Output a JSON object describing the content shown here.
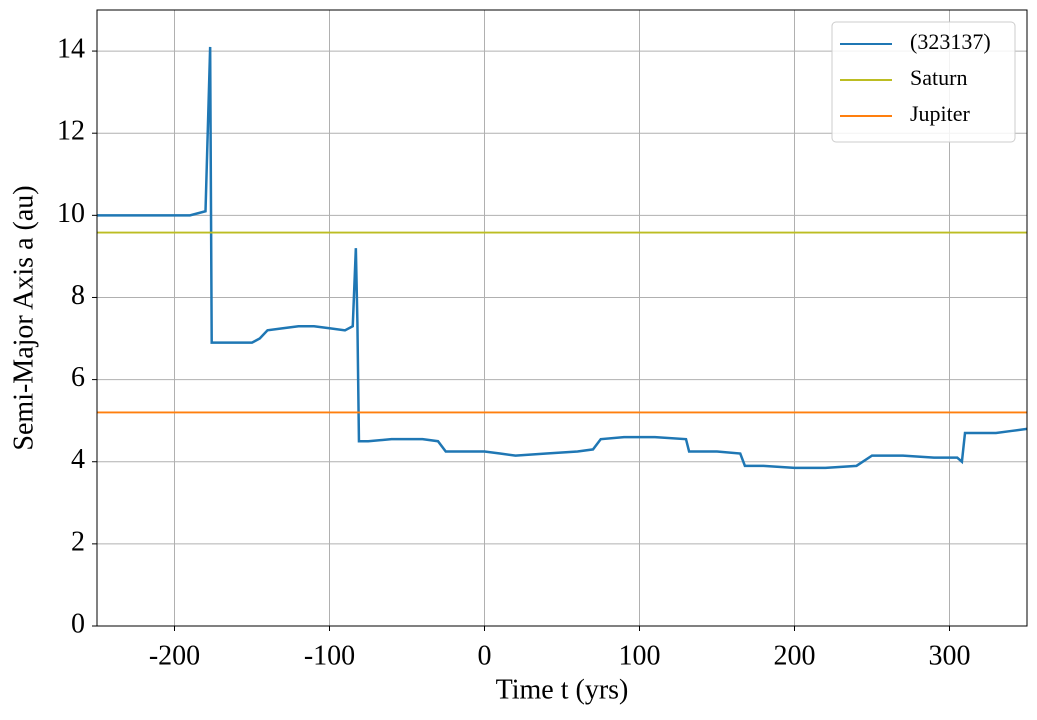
{
  "chart_data": {
    "type": "line",
    "xlabel": "Time t (yrs)",
    "ylabel": "Semi-Major Axis a (au)",
    "xlim": [
      -250,
      350
    ],
    "ylim": [
      0,
      15
    ],
    "xticks": [
      -200,
      -100,
      0,
      100,
      200,
      300
    ],
    "yticks": [
      0,
      2,
      4,
      6,
      8,
      10,
      12,
      14
    ],
    "grid": true,
    "legend": "upper right",
    "series": [
      {
        "name": "(323137)",
        "color": "#1f77b4",
        "x": [
          -250,
          -240,
          -230,
          -220,
          -210,
          -200,
          -190,
          -180,
          -177,
          -176,
          -170,
          -150,
          -145,
          -140,
          -130,
          -120,
          -110,
          -100,
          -90,
          -85,
          -83,
          -82,
          -81,
          -75,
          -60,
          -40,
          -30,
          -25,
          -10,
          0,
          10,
          20,
          40,
          60,
          70,
          75,
          90,
          110,
          130,
          132,
          150,
          165,
          168,
          180,
          200,
          220,
          240,
          250,
          270,
          290,
          305,
          308,
          310,
          320,
          330,
          340,
          350
        ],
        "values": [
          10.0,
          10.0,
          10.0,
          10.0,
          10.0,
          10.0,
          10.0,
          10.1,
          14.1,
          6.9,
          6.9,
          6.9,
          7.0,
          7.2,
          7.25,
          7.3,
          7.3,
          7.25,
          7.2,
          7.3,
          9.2,
          7.4,
          4.5,
          4.5,
          4.55,
          4.55,
          4.5,
          4.25,
          4.25,
          4.25,
          4.2,
          4.15,
          4.2,
          4.25,
          4.3,
          4.55,
          4.6,
          4.6,
          4.55,
          4.25,
          4.25,
          4.2,
          3.9,
          3.9,
          3.85,
          3.85,
          3.9,
          4.15,
          4.15,
          4.1,
          4.1,
          4.0,
          4.7,
          4.7,
          4.7,
          4.75,
          4.8
        ]
      },
      {
        "name": "Saturn",
        "color": "#bcbd22",
        "x": [
          -250,
          350
        ],
        "values": [
          9.58,
          9.58
        ]
      },
      {
        "name": "Jupiter",
        "color": "#ff7f0e",
        "x": [
          -250,
          350
        ],
        "values": [
          5.2,
          5.2
        ]
      }
    ]
  }
}
